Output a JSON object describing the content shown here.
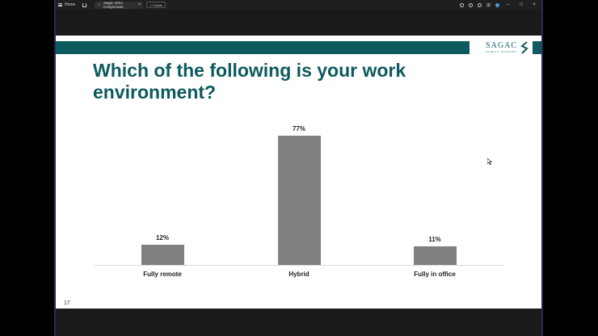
{
  "topbar": {
    "home_label": "Home",
    "tab_title": "Sagac 2024 Compensati...",
    "create_label": "Create"
  },
  "slide": {
    "title": "Which of the following is your work environment?",
    "logo_text": "SAGAC",
    "logo_subtext": "PUBLIC AFFAIRS",
    "page_number": "17",
    "accent_color": "#0d5a5e",
    "bar_color": "#808080"
  },
  "chart_data": {
    "type": "bar",
    "categories": [
      "Fully remote",
      "Hybrid",
      "Fully in office"
    ],
    "values": [
      12,
      77,
      11
    ],
    "value_labels": [
      "12%",
      "77%",
      "11%"
    ],
    "ylim": [
      0,
      77
    ],
    "grid": false,
    "legend": "none"
  }
}
